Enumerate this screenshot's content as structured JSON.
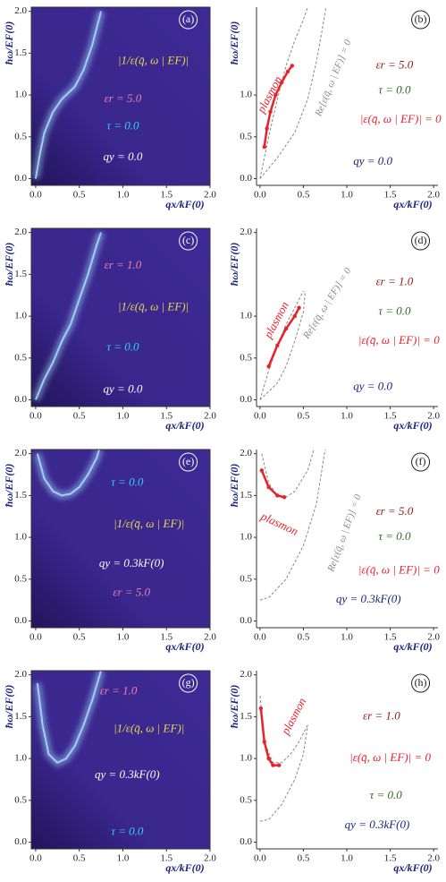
{
  "chart_data": [
    {
      "type": "density",
      "label": "(a)",
      "xlabel": "qx/kF(0)",
      "ylabel": "ħω/EF(0)",
      "xlim": [
        -0.05,
        2.0
      ],
      "ylim": [
        -0.08,
        2.05
      ],
      "xticks": [
        {
          "value": 0,
          "label": "0.0"
        },
        {
          "value": 0.5,
          "label": "0.5"
        },
        {
          "value": 1,
          "label": "1.0"
        },
        {
          "value": 1.5,
          "label": "1.5"
        },
        {
          "value": 2,
          "label": "2.0"
        }
      ],
      "yticks": [
        {
          "value": 0,
          "label": "0.0"
        },
        {
          "value": 0.5,
          "label": "0.5"
        },
        {
          "value": 1,
          "label": "1.0"
        },
        {
          "value": 1.5,
          "label": "1.5"
        },
        {
          "value": 2,
          "label": "2.0"
        }
      ],
      "background": "#3d2a96",
      "ridge_color": "#a8e0ff",
      "ridge": {
        "x": [
          0,
          0.05,
          0.1,
          0.2,
          0.3,
          0.45,
          0.55,
          0.65,
          0.75
        ],
        "y": [
          0,
          0.3,
          0.55,
          0.8,
          0.95,
          1.1,
          1.3,
          1.6,
          2.0
        ]
      },
      "annotations": [
        {
          "text": "|1/ε(q̄, ω | EF)|",
          "color": "#e8d84a"
        },
        {
          "text": "εr = 5.0",
          "color": "#ee7fa6"
        },
        {
          "text": "τ = 0.0",
          "color": "#33ccff"
        },
        {
          "text": "qy = 0.0",
          "color": "#ffffff"
        }
      ]
    },
    {
      "type": "dispersion",
      "label": "(b)",
      "xlabel": "qx/kF(0)",
      "ylabel": "ħω/EF(0)",
      "xlim": [
        -0.04,
        2.05
      ],
      "ylim": [
        -0.08,
        2.05
      ],
      "xticks": [
        {
          "value": 0,
          "label": "0.0"
        },
        {
          "value": 0.5,
          "label": "0.5"
        },
        {
          "value": 1,
          "label": "1.0"
        },
        {
          "value": 1.5,
          "label": "1.5"
        },
        {
          "value": 2,
          "label": "2.0"
        }
      ],
      "yticks": [
        {
          "value": 0,
          "label": "0.0"
        },
        {
          "value": 0.5,
          "label": "0.5"
        },
        {
          "value": 1,
          "label": "1.0"
        }
      ],
      "plasmon": {
        "color": "#e8212a",
        "x": [
          0.05,
          0.08,
          0.12,
          0.18,
          0.25,
          0.32,
          0.37
        ],
        "y": [
          0.38,
          0.6,
          0.8,
          1.0,
          1.15,
          1.28,
          1.35
        ]
      },
      "boundary_color": "#888888",
      "boundaries": [
        {
          "x": [
            0,
            0.1,
            0.2,
            0.3,
            0.4,
            0.5,
            0.55
          ],
          "y": [
            0,
            0.5,
            0.95,
            1.35,
            1.65,
            1.9,
            2.05
          ]
        },
        {
          "x": [
            0,
            0.2,
            0.4,
            0.55,
            0.65,
            0.72,
            0.76
          ],
          "y": [
            0,
            0.25,
            0.55,
            0.95,
            1.4,
            1.8,
            2.05
          ]
        }
      ],
      "annotations": [
        {
          "text": "plasmon",
          "color": "#e8212a"
        },
        {
          "text": "Re[ε(q̄, ω | EF)] = 0",
          "color": "#888888"
        },
        {
          "text": "εr = 5.0",
          "color": "#8b1a1a"
        },
        {
          "text": "τ = 0.0",
          "color": "#2e6b1e"
        },
        {
          "text": "|ε(q̄, ω | EF)| = 0",
          "color": "#e8212a"
        },
        {
          "text": "qy = 0.0",
          "color": "#1a237e"
        }
      ]
    },
    {
      "type": "density",
      "label": "(c)",
      "xlabel": "qx/kF(0)",
      "ylabel": "ħω/EF(0)",
      "xlim": [
        -0.05,
        2.0
      ],
      "ylim": [
        -0.08,
        2.05
      ],
      "xticks": [
        {
          "value": 0,
          "label": "0.0"
        },
        {
          "value": 0.5,
          "label": "0.5"
        },
        {
          "value": 1,
          "label": "1.0"
        },
        {
          "value": 1.5,
          "label": "1.5"
        },
        {
          "value": 2,
          "label": "2.0"
        }
      ],
      "yticks": [
        {
          "value": 0,
          "label": "0.0"
        },
        {
          "value": 0.5,
          "label": "0.5"
        },
        {
          "value": 1,
          "label": "1.0"
        },
        {
          "value": 1.5,
          "label": "1.5"
        },
        {
          "value": 2,
          "label": "2.0"
        }
      ],
      "background": "#3d2a96",
      "ridge_color": "#a8e0ff",
      "ridge": {
        "x": [
          0,
          0.1,
          0.2,
          0.3,
          0.4,
          0.5,
          0.6,
          0.7,
          0.75
        ],
        "y": [
          0,
          0.25,
          0.45,
          0.7,
          0.9,
          1.2,
          1.5,
          1.85,
          2.0
        ]
      },
      "annotations": [
        {
          "text": "εr = 1.0",
          "color": "#ee7fa6"
        },
        {
          "text": "|1/ε(q̄, ω | EF)|",
          "color": "#e8d84a"
        },
        {
          "text": "τ = 0.0",
          "color": "#33ccff"
        },
        {
          "text": "qy = 0.0",
          "color": "#ffffff"
        }
      ]
    },
    {
      "type": "dispersion",
      "label": "(d)",
      "xlabel": "qx/kF(0)",
      "ylabel": "ħω/EF(0)",
      "xlim": [
        -0.04,
        2.05
      ],
      "ylim": [
        -0.08,
        2.05
      ],
      "xticks": [
        {
          "value": 0,
          "label": "0.0"
        },
        {
          "value": 0.5,
          "label": "0.5"
        },
        {
          "value": 1,
          "label": "1.0"
        },
        {
          "value": 1.5,
          "label": "1.5"
        },
        {
          "value": 2,
          "label": "2.0"
        }
      ],
      "yticks": [
        {
          "value": 0,
          "label": "0.0"
        },
        {
          "value": 0.5,
          "label": "0.5"
        },
        {
          "value": 1,
          "label": "1.0"
        },
        {
          "value": 2,
          "label": "2.0"
        }
      ],
      "plasmon": {
        "color": "#e8212a",
        "x": [
          0.1,
          0.2,
          0.3,
          0.4,
          0.45
        ],
        "y": [
          0.4,
          0.65,
          0.85,
          1.0,
          1.1
        ]
      },
      "boundary_color": "#888888",
      "boundaries": [
        {
          "x": [
            0,
            0.1,
            0.2,
            0.3,
            0.4,
            0.5
          ],
          "y": [
            0,
            0.35,
            0.65,
            0.9,
            1.1,
            1.3
          ]
        },
        {
          "x": [
            0,
            0.2,
            0.3,
            0.4,
            0.5,
            0.52
          ],
          "y": [
            0,
            0.2,
            0.4,
            0.7,
            1.05,
            1.3
          ]
        }
      ],
      "annotations": [
        {
          "text": "plasmon",
          "color": "#e8212a"
        },
        {
          "text": "Re[ε(q̄, ω | EF)] = 0",
          "color": "#888888"
        },
        {
          "text": "εr = 1.0",
          "color": "#8b1a1a"
        },
        {
          "text": "τ = 0.0",
          "color": "#2e6b1e"
        },
        {
          "text": "|ε(q̄, ω | EF)| = 0",
          "color": "#e8212a"
        },
        {
          "text": "qy = 0.0",
          "color": "#1a237e"
        }
      ]
    },
    {
      "type": "density",
      "label": "(e)",
      "xlabel": "qx/kF(0)",
      "ylabel": "ħω/EF(0)",
      "xlim": [
        -0.05,
        2.0
      ],
      "ylim": [
        -0.08,
        2.05
      ],
      "xticks": [
        {
          "value": 0,
          "label": "0.0"
        },
        {
          "value": 0.5,
          "label": "0.5"
        },
        {
          "value": 1,
          "label": "1.0"
        },
        {
          "value": 1.5,
          "label": "1.5"
        },
        {
          "value": 2,
          "label": "2.0"
        }
      ],
      "yticks": [
        {
          "value": 0,
          "label": "0.0"
        },
        {
          "value": 0.5,
          "label": "0.5"
        },
        {
          "value": 1,
          "label": "1.0"
        },
        {
          "value": 1.5,
          "label": "1.5"
        },
        {
          "value": 2,
          "label": "2.0"
        }
      ],
      "background": "#3d2a96",
      "ridge_color": "#a8e0ff",
      "ridge": {
        "x": [
          0.02,
          0.1,
          0.2,
          0.3,
          0.4,
          0.5,
          0.6,
          0.7,
          0.73
        ],
        "y": [
          2.0,
          1.7,
          1.55,
          1.5,
          1.52,
          1.6,
          1.75,
          1.95,
          2.05
        ]
      },
      "annotations": [
        {
          "text": "τ = 0.0",
          "color": "#33ccff"
        },
        {
          "text": "|1/ε(q̄, ω | EF)|",
          "color": "#e8d84a"
        },
        {
          "text": "qy = 0.3kF(0)",
          "color": "#ffffff"
        },
        {
          "text": "εr = 5.0",
          "color": "#ee7fa6"
        }
      ]
    },
    {
      "type": "dispersion",
      "label": "(f)",
      "xlabel": "qx/kF(0)",
      "ylabel": "ħω/EF(0)",
      "xlim": [
        -0.04,
        2.05
      ],
      "ylim": [
        -0.08,
        2.05
      ],
      "xticks": [
        {
          "value": 0,
          "label": "0.0"
        },
        {
          "value": 0.5,
          "label": "0.5"
        },
        {
          "value": 1,
          "label": "1.0"
        },
        {
          "value": 1.5,
          "label": "1.5"
        },
        {
          "value": 2,
          "label": "2.0"
        }
      ],
      "yticks": [
        {
          "value": 0,
          "label": "0.0"
        },
        {
          "value": 0.5,
          "label": "0.5"
        },
        {
          "value": 1,
          "label": "1.0"
        },
        {
          "value": 1.5,
          "label": "1.5"
        },
        {
          "value": 2,
          "label": "2.0"
        }
      ],
      "plasmon": {
        "color": "#e8212a",
        "x": [
          0.02,
          0.1,
          0.2,
          0.28
        ],
        "y": [
          1.8,
          1.6,
          1.5,
          1.48
        ]
      },
      "boundary_color": "#888888",
      "boundaries": [
        {
          "x": [
            0.02,
            0.1,
            0.2,
            0.3,
            0.4,
            0.55,
            0.62
          ],
          "y": [
            2.0,
            1.65,
            1.5,
            1.48,
            1.55,
            1.8,
            2.05
          ]
        },
        {
          "x": [
            0,
            0.1,
            0.3,
            0.5,
            0.65,
            0.75
          ],
          "y": [
            0.25,
            0.28,
            0.5,
            0.9,
            1.4,
            2.05
          ]
        }
      ],
      "annotations": [
        {
          "text": "plasmon",
          "color": "#e8212a"
        },
        {
          "text": "Re[ε(q̄, ω | EF)] = 0",
          "color": "#888888"
        },
        {
          "text": "εr = 5.0",
          "color": "#8b1a1a"
        },
        {
          "text": "τ = 0.0",
          "color": "#2e6b1e"
        },
        {
          "text": "|ε(q̄, ω | EF)| = 0",
          "color": "#e8212a"
        },
        {
          "text": "qy = 0.3kF(0)",
          "color": "#1a237e"
        }
      ]
    },
    {
      "type": "density",
      "label": "(g)",
      "xlabel": "qx/kF(0)",
      "ylabel": "ħω/EF(0)",
      "xlim": [
        -0.05,
        2.0
      ],
      "ylim": [
        -0.08,
        2.05
      ],
      "xticks": [
        {
          "value": 0,
          "label": "0.0"
        },
        {
          "value": 0.5,
          "label": "0.5"
        },
        {
          "value": 1,
          "label": "1.0"
        },
        {
          "value": 1.5,
          "label": "1.5"
        },
        {
          "value": 2,
          "label": "2.0"
        }
      ],
      "yticks": [
        {
          "value": 0,
          "label": "0.0"
        },
        {
          "value": 0.5,
          "label": "0.5"
        },
        {
          "value": 1,
          "label": "1.0"
        },
        {
          "value": 1.5,
          "label": "1.5"
        },
        {
          "value": 2,
          "label": "2.0"
        }
      ],
      "background": "#3d2a96",
      "ridge_color": "#a8e0ff",
      "ridge": {
        "x": [
          0.02,
          0.08,
          0.15,
          0.25,
          0.35,
          0.45,
          0.55,
          0.65,
          0.75
        ],
        "y": [
          1.9,
          1.4,
          1.05,
          0.95,
          1.0,
          1.15,
          1.4,
          1.7,
          2.05
        ]
      },
      "annotations": [
        {
          "text": "εr = 1.0",
          "color": "#ee7fa6"
        },
        {
          "text": "|1/ε(q̄, ω | EF)|",
          "color": "#e8d84a"
        },
        {
          "text": "qy = 0.3kF(0)",
          "color": "#ffffff"
        },
        {
          "text": "τ = 0.0",
          "color": "#33ccff"
        }
      ]
    },
    {
      "type": "dispersion",
      "label": "(h)",
      "xlabel": "qx/kF(0)",
      "ylabel": "ħω/EF(0)",
      "xlim": [
        -0.04,
        2.05
      ],
      "ylim": [
        -0.08,
        2.05
      ],
      "xticks": [
        {
          "value": 0,
          "label": "0.0"
        },
        {
          "value": 0.5,
          "label": "0.5"
        },
        {
          "value": 1,
          "label": "1.0"
        },
        {
          "value": 1.5,
          "label": "1.5"
        },
        {
          "value": 2,
          "label": "2.0"
        }
      ],
      "yticks": [
        {
          "value": 0,
          "label": "0.0"
        },
        {
          "value": 0.5,
          "label": "0.5"
        },
        {
          "value": 1,
          "label": "1.0"
        },
        {
          "value": 1.5,
          "label": "1.5"
        },
        {
          "value": 2,
          "label": "2.0"
        }
      ],
      "plasmon": {
        "color": "#e8212a",
        "x": [
          0.01,
          0.05,
          0.1,
          0.15,
          0.22
        ],
        "y": [
          1.6,
          1.2,
          1.0,
          0.92,
          0.92
        ]
      },
      "boundary_color": "#888888",
      "boundaries": [
        {
          "x": [
            0,
            0.05,
            0.15,
            0.25,
            0.35,
            0.45,
            0.55
          ],
          "y": [
            1.75,
            1.2,
            0.95,
            0.95,
            1.05,
            1.2,
            1.4
          ]
        },
        {
          "x": [
            0,
            0.1,
            0.25,
            0.4,
            0.5,
            0.55
          ],
          "y": [
            0.25,
            0.27,
            0.45,
            0.75,
            1.05,
            1.4
          ]
        }
      ],
      "annotations": [
        {
          "text": "plasmon",
          "color": "#e8212a"
        },
        {
          "text": "εr = 1.0",
          "color": "#8b1a1a"
        },
        {
          "text": "|ε(q̄, ω | EF)| = 0",
          "color": "#e8212a"
        },
        {
          "text": "τ = 0.0",
          "color": "#2e6b1e"
        },
        {
          "text": "qy = 0.3kF(0)",
          "color": "#1a237e"
        }
      ]
    }
  ]
}
